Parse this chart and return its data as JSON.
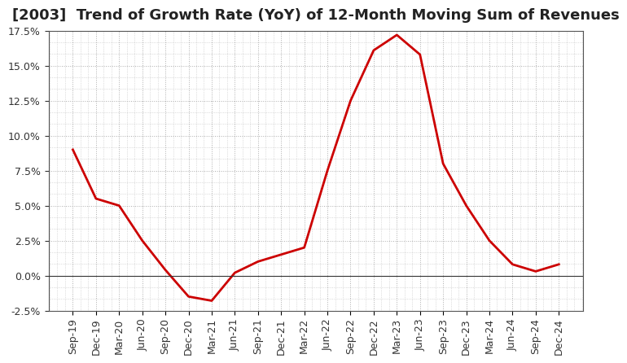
{
  "title": "[2003]  Trend of Growth Rate (YoY) of 12-Month Moving Sum of Revenues",
  "x_labels": [
    "Sep-19",
    "Dec-19",
    "Mar-20",
    "Jun-20",
    "Sep-20",
    "Dec-20",
    "Mar-21",
    "Jun-21",
    "Sep-21",
    "Dec-21",
    "Mar-22",
    "Jun-22",
    "Sep-22",
    "Dec-22",
    "Mar-23",
    "Jun-23",
    "Sep-23",
    "Dec-23",
    "Mar-24",
    "Jun-24",
    "Sep-24",
    "Dec-24"
  ],
  "y_values": [
    0.09,
    0.055,
    0.05,
    0.025,
    0.004,
    -0.015,
    -0.018,
    0.002,
    0.01,
    0.015,
    0.02,
    0.075,
    0.125,
    0.161,
    0.172,
    0.158,
    0.08,
    0.05,
    0.025,
    0.008,
    0.003,
    0.008
  ],
  "line_color": "#CC0000",
  "background_color": "#FFFFFF",
  "plot_bg_color": "#FFFFFF",
  "grid_color": "#999999",
  "border_color": "#555555",
  "ylim": [
    -0.025,
    0.175
  ],
  "yticks": [
    -0.025,
    0.0,
    0.025,
    0.05,
    0.075,
    0.1,
    0.125,
    0.15,
    0.175
  ],
  "title_fontsize": 13,
  "tick_fontsize": 9,
  "line_width": 2.0,
  "title_color": "#222222"
}
